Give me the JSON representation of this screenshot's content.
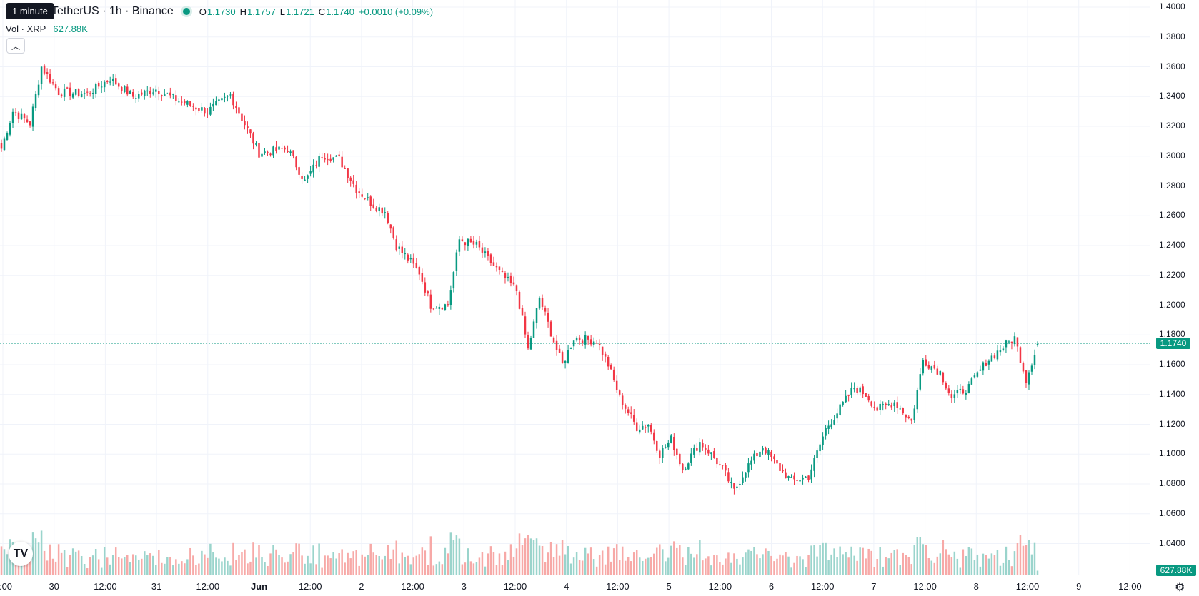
{
  "tooltip": "1 minute",
  "legend": {
    "symbol_title": "TetherUS · 1h · Binance",
    "open_label": "O",
    "open": "1.1730",
    "high_label": "H",
    "high": "1.1757",
    "low_label": "L",
    "low": "1.1721",
    "close_label": "C",
    "close": "1.1740",
    "change": "+0.0010 (+0.09%)",
    "volume_label": "Vol · XRP",
    "volume_value": "627.88K"
  },
  "price_axis": {
    "labels": [
      "1.4000",
      "1.3800",
      "1.3600",
      "1.3400",
      "1.3200",
      "1.3000",
      "1.2800",
      "1.2600",
      "1.2400",
      "1.2200",
      "1.2000",
      "1.1800",
      "1.1600",
      "1.1400",
      "1.1200",
      "1.1000",
      "1.0800",
      "1.0600",
      "1.0400"
    ],
    "last_price": "1.1740",
    "volume_tag": "627.88K"
  },
  "time_axis": {
    "labels": [
      ":00",
      "30",
      "12:00",
      "31",
      "12:00",
      "Jun",
      "12:00",
      "2",
      "12:00",
      "3",
      "12:00",
      "4",
      "12:00",
      "5",
      "12:00",
      "6",
      "12:00",
      "7",
      "12:00",
      "8",
      "12:00",
      "9",
      "12:00"
    ]
  },
  "colors": {
    "up": "#089981",
    "down": "#F23645",
    "up_volume": "#9ad4cc",
    "down_volume": "#f7a9a7",
    "grid": "#f0f3fa"
  },
  "icons": {
    "collapse": "chevron-up-icon",
    "logo": "tradingview-logo",
    "settings": "settings-gear-icon"
  },
  "chart_data": {
    "type": "candlestick",
    "series_interval": "1h",
    "y_range": [
      1.03,
      1.4
    ],
    "anchors": [
      [
        0,
        1.305
      ],
      [
        4,
        1.33
      ],
      [
        10,
        1.322
      ],
      [
        14,
        1.36
      ],
      [
        20,
        1.343
      ],
      [
        30,
        1.342
      ],
      [
        38,
        1.352
      ],
      [
        46,
        1.34
      ],
      [
        54,
        1.345
      ],
      [
        62,
        1.337
      ],
      [
        72,
        1.33
      ],
      [
        80,
        1.341
      ],
      [
        90,
        1.302
      ],
      [
        100,
        1.305
      ],
      [
        106,
        1.283
      ],
      [
        112,
        1.301
      ],
      [
        118,
        1.298
      ],
      [
        124,
        1.278
      ],
      [
        130,
        1.267
      ],
      [
        134,
        1.263
      ],
      [
        138,
        1.24
      ],
      [
        146,
        1.222
      ],
      [
        150,
        1.2
      ],
      [
        156,
        1.2
      ],
      [
        160,
        1.244
      ],
      [
        166,
        1.24
      ],
      [
        174,
        1.222
      ],
      [
        180,
        1.21
      ],
      [
        184,
        1.17
      ],
      [
        188,
        1.205
      ],
      [
        194,
        1.17
      ],
      [
        196,
        1.16
      ],
      [
        200,
        1.178
      ],
      [
        208,
        1.176
      ],
      [
        212,
        1.16
      ],
      [
        216,
        1.138
      ],
      [
        222,
        1.118
      ],
      [
        226,
        1.12
      ],
      [
        230,
        1.1
      ],
      [
        234,
        1.11
      ],
      [
        238,
        1.09
      ],
      [
        244,
        1.108
      ],
      [
        248,
        1.1
      ],
      [
        252,
        1.09
      ],
      [
        256,
        1.075
      ],
      [
        260,
        1.09
      ],
      [
        266,
        1.105
      ],
      [
        272,
        1.09
      ],
      [
        276,
        1.082
      ],
      [
        282,
        1.085
      ],
      [
        288,
        1.117
      ],
      [
        292,
        1.128
      ],
      [
        298,
        1.145
      ],
      [
        302,
        1.14
      ],
      [
        306,
        1.13
      ],
      [
        312,
        1.135
      ],
      [
        318,
        1.122
      ],
      [
        322,
        1.163
      ],
      [
        328,
        1.155
      ],
      [
        332,
        1.138
      ],
      [
        338,
        1.145
      ],
      [
        344,
        1.162
      ],
      [
        350,
        1.172
      ],
      [
        354,
        1.178
      ],
      [
        358,
        1.15
      ],
      [
        362,
        1.174
      ]
    ]
  }
}
